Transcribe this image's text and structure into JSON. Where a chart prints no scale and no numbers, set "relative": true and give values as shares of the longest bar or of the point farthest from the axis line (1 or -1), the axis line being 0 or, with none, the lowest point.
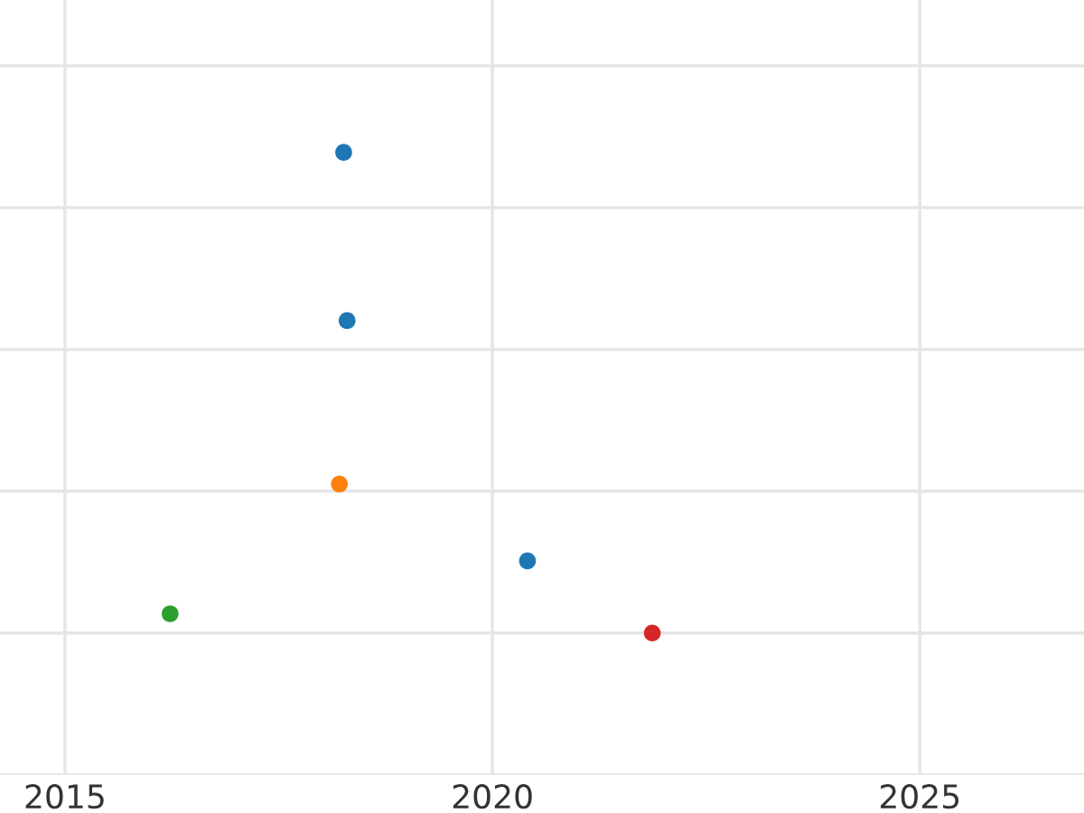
{
  "chart_data": {
    "type": "scatter",
    "relative": true,
    "tick_labels": "x",
    "x": [
      2018.26,
      2018.3,
      2018.21,
      2020.41,
      2016.23,
      2021.87
    ],
    "values": [
      1,
      0.65,
      0.31,
      0.15,
      0.04,
      0
    ],
    "colors": [
      "#1f77b4",
      "#1f77b4",
      "#ff7f0e",
      "#1f77b4",
      "#2ca02c",
      "#d62728"
    ],
    "xlim": [
      2014.24,
      2026.92
    ],
    "xticks": [
      2015,
      2020,
      2025
    ],
    "grid": true,
    "marker": "circle"
  }
}
